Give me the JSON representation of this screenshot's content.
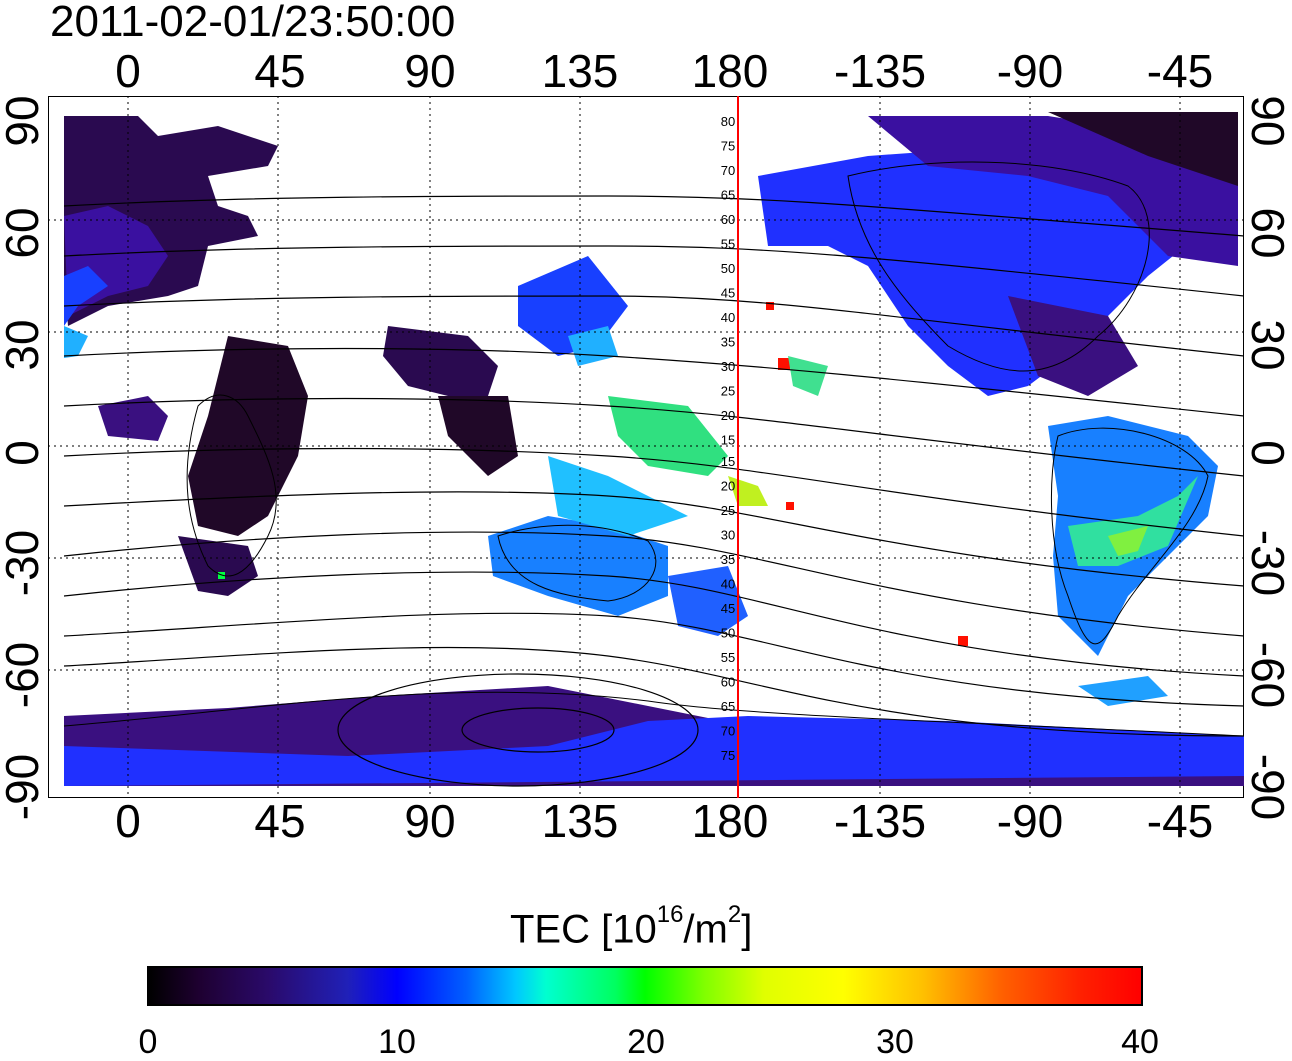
{
  "title": "2011-02-01/23:50:00",
  "lon_ticks_top": [
    "0",
    "45",
    "90",
    "135",
    "180",
    "-135",
    "-90",
    "-45"
  ],
  "lon_ticks_bottom": [
    "0",
    "45",
    "90",
    "135",
    "180",
    "-135",
    "-90",
    "-45"
  ],
  "lat_ticks_left": [
    "90",
    "60",
    "30",
    "0",
    "-30",
    "-60",
    "-90"
  ],
  "lat_ticks_right": [
    "90",
    "60",
    "30",
    "0",
    "-30",
    "-60",
    "-90"
  ],
  "contour_labels": [
    "80",
    "75",
    "70",
    "65",
    "60",
    "55",
    "50",
    "45",
    "40",
    "35",
    "30",
    "25",
    "20",
    "15",
    "15",
    "20",
    "25",
    "30",
    "35",
    "40",
    "45",
    "50",
    "55",
    "60",
    "65",
    "70",
    "75"
  ],
  "colorbar": {
    "title_main": "TEC  [10",
    "title_sup1": "16",
    "title_mid": "/m",
    "title_sup2": "2",
    "title_end": "]",
    "ticks": [
      "0",
      "10",
      "20",
      "30",
      "40"
    ],
    "min": 0,
    "max": 40
  },
  "colors": {
    "meridian_line": "#ff0000",
    "dark_purple": "#2a0a50",
    "purple": "#3a1080",
    "blue": "#2030ff",
    "light_blue": "#20a0ff",
    "cyan": "#00e0ff",
    "green": "#00ff40",
    "yellow": "#e0ff00",
    "red": "#ff1000"
  }
}
